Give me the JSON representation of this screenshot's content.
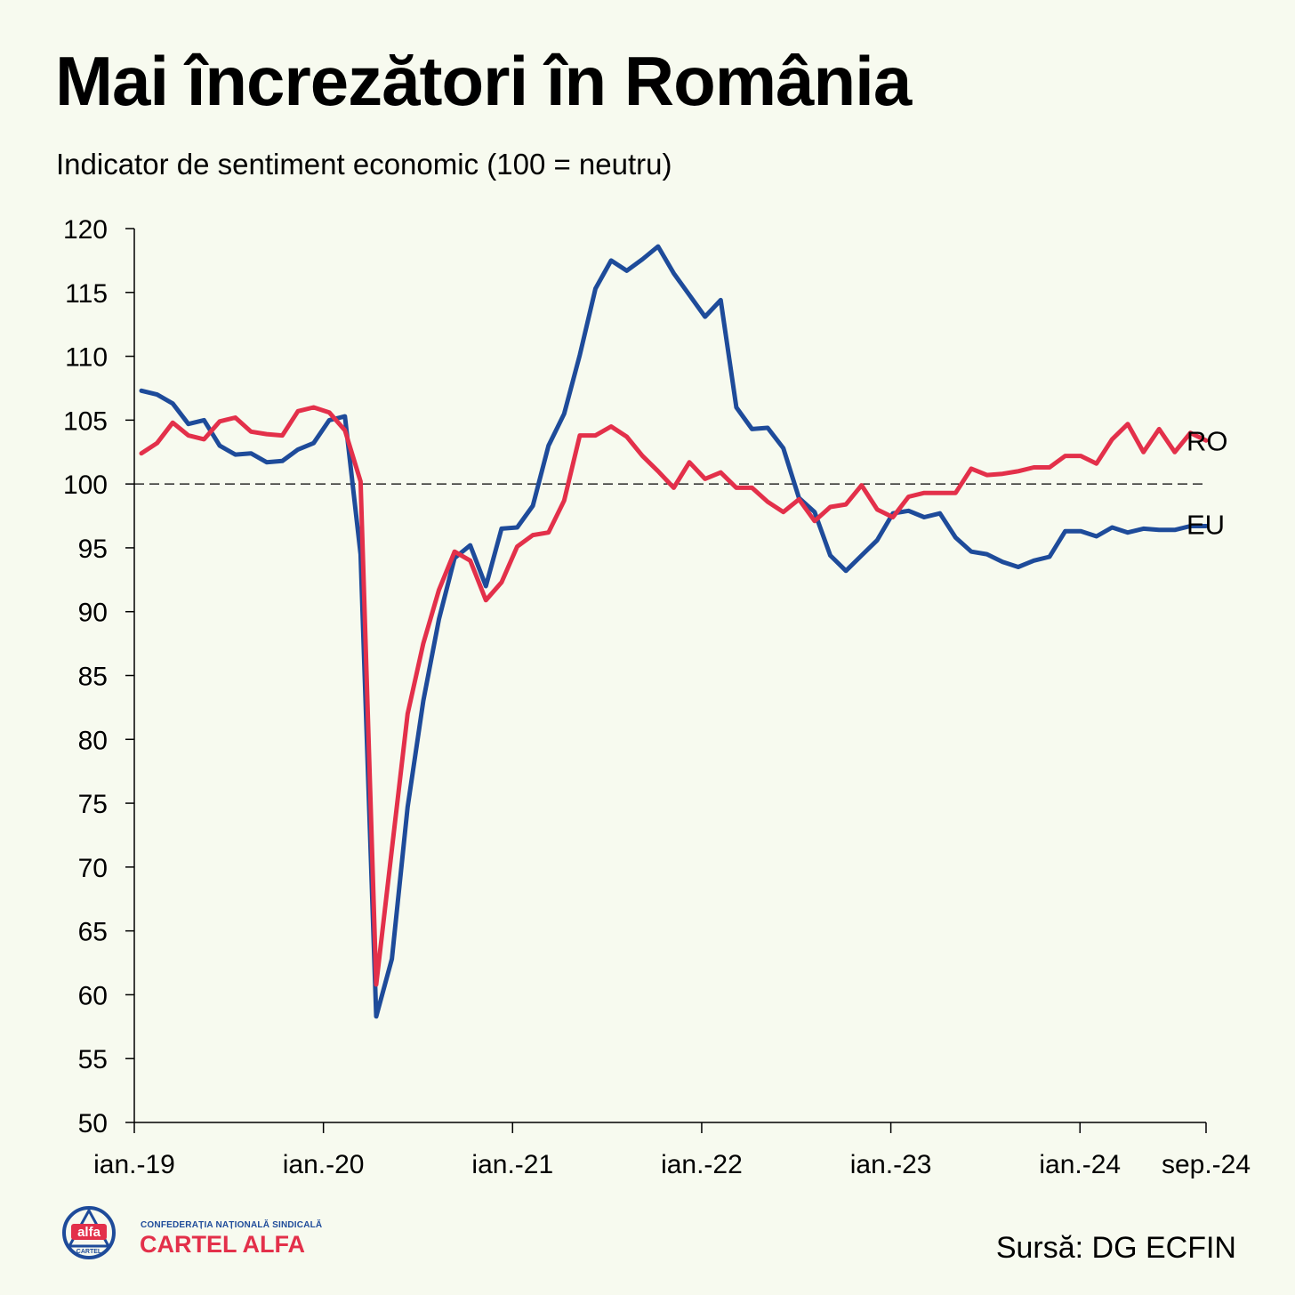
{
  "header": {
    "title": "Mai încrezători în România",
    "subtitle": "Indicator de sentiment economic (100 = neutru)"
  },
  "footer": {
    "source": "Sursă: DG ECFIN",
    "logo": {
      "org_line": "CONFEDERAȚIA NAȚIONALĂ SINDICALĂ",
      "name": "CARTEL ALFA",
      "badge_word": "alfa",
      "badge_sub": "CARTEL"
    }
  },
  "colors": {
    "background": "#f7faef",
    "ro": "#e3304a",
    "eu": "#1e4b9a",
    "axis": "#000000"
  },
  "chart_data": {
    "type": "line",
    "title": "Mai încrezători în România",
    "subtitle": "Indicator de sentiment economic (100 = neutru)",
    "x_start": "2019-01",
    "x_end": "2024-09",
    "x_ticks": [
      "ian.-19",
      "ian.-20",
      "ian.-21",
      "ian.-22",
      "ian.-23",
      "ian.-24",
      "sep.-24"
    ],
    "ylim": [
      50,
      120
    ],
    "y_ticks": [
      120,
      115,
      110,
      105,
      100,
      95,
      90,
      85,
      80,
      75,
      70,
      65,
      60,
      55,
      50
    ],
    "reference_line": {
      "y": 100,
      "style": "dashed"
    },
    "grid": false,
    "legend": "line-end labels",
    "series": [
      {
        "name": "RO",
        "color": "#e3304a",
        "values": [
          102.4,
          103.2,
          104.8,
          103.8,
          103.5,
          104.9,
          105.2,
          104.1,
          103.9,
          103.8,
          105.7,
          106.0,
          105.6,
          104.2,
          100.2,
          60.8,
          71.4,
          82.0,
          87.5,
          91.7,
          94.7,
          94.0,
          90.9,
          92.3,
          95.1,
          96.0,
          96.2,
          98.7,
          103.8,
          103.8,
          104.5,
          103.7,
          102.2,
          101.0,
          99.7,
          101.7,
          100.4,
          100.9,
          99.7,
          99.7,
          98.6,
          97.8,
          98.8,
          97.1,
          98.2,
          98.4,
          99.9,
          98.0,
          97.4,
          99.0,
          99.3,
          99.3,
          99.3,
          101.2,
          100.7,
          100.8,
          101.0,
          101.3,
          101.3,
          102.2,
          102.2,
          101.6,
          103.5,
          104.7,
          102.5,
          104.3,
          102.5,
          104.0,
          103.4
        ]
      },
      {
        "name": "EU",
        "color": "#1e4b9a",
        "values": [
          107.3,
          107.0,
          106.3,
          104.7,
          105.0,
          103.0,
          102.3,
          102.4,
          101.7,
          101.8,
          102.7,
          103.2,
          105.0,
          105.3,
          94.5,
          58.3,
          62.8,
          74.7,
          83.0,
          89.4,
          94.2,
          95.2,
          92.0,
          96.5,
          96.6,
          98.3,
          103.0,
          105.5,
          110.1,
          115.3,
          117.5,
          116.7,
          117.6,
          118.6,
          116.5,
          114.8,
          113.1,
          114.4,
          106.0,
          104.3,
          104.4,
          102.8,
          98.9,
          97.8,
          94.4,
          93.2,
          94.4,
          95.6,
          97.7,
          97.9,
          97.4,
          97.7,
          95.8,
          94.7,
          94.5,
          93.9,
          93.5,
          94.0,
          94.3,
          96.3,
          96.3,
          95.9,
          96.6,
          96.2,
          96.5,
          96.4,
          96.4,
          96.7,
          96.7
        ]
      }
    ]
  }
}
